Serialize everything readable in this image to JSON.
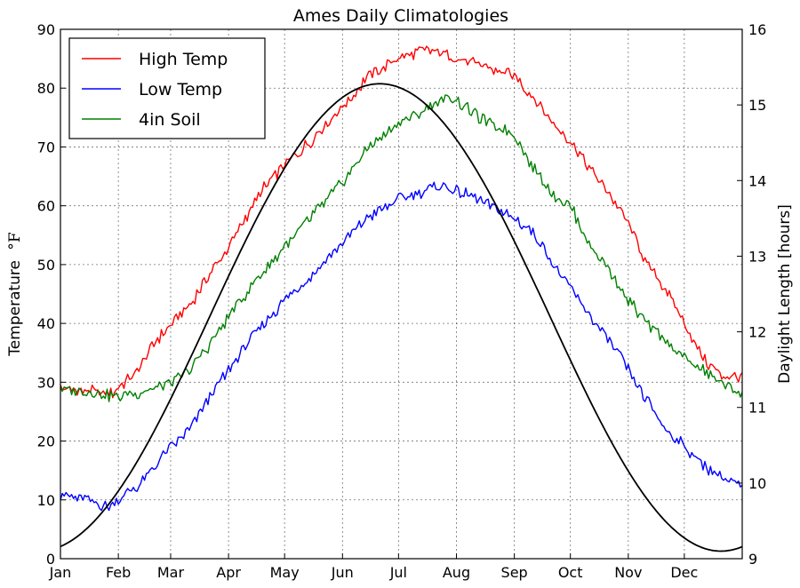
{
  "chart_data": {
    "type": "line",
    "title": "Ames Daily Climatologies",
    "ylabel": "Temperature °F",
    "ylabel_base": "Temperature",
    "ylabel_unit": "°F",
    "y2label": "Daylight Length [hours]",
    "ylim": [
      0,
      90
    ],
    "y2lim": [
      9,
      16
    ],
    "xlim_day": [
      1,
      366
    ],
    "grid": true,
    "legend_position": "top-left",
    "yticks": [
      0,
      10,
      20,
      30,
      40,
      50,
      60,
      70,
      80,
      90
    ],
    "y2ticks": [
      9,
      10,
      11,
      12,
      13,
      14,
      15,
      16
    ],
    "months": [
      {
        "label": "Jan",
        "day": 1
      },
      {
        "label": "Feb",
        "day": 32
      },
      {
        "label": "Mar",
        "day": 60
      },
      {
        "label": "Apr",
        "day": 91
      },
      {
        "label": "May",
        "day": 121
      },
      {
        "label": "Jun",
        "day": 152
      },
      {
        "label": "Jul",
        "day": 182
      },
      {
        "label": "Aug",
        "day": 213
      },
      {
        "label": "Sep",
        "day": 244
      },
      {
        "label": "Oct",
        "day": 274
      },
      {
        "label": "Nov",
        "day": 305
      },
      {
        "label": "Dec",
        "day": 335
      }
    ],
    "series": [
      {
        "name": "High Temp",
        "color": "#ff0000",
        "axis": "left",
        "x": [
          1,
          15,
          28,
          40,
          50,
          60,
          70,
          80,
          91,
          100,
          110,
          121,
          135,
          152,
          166,
          182,
          195,
          205,
          213,
          225,
          244,
          255,
          265,
          274,
          285,
          295,
          305,
          315,
          325,
          335,
          345,
          355,
          366
        ],
        "values": [
          29,
          28.5,
          28,
          31,
          36,
          40,
          43,
          48,
          53,
          58,
          63,
          67,
          71,
          77,
          82,
          85,
          86.5,
          86,
          85,
          84,
          82,
          78,
          74,
          71,
          66,
          62,
          57,
          50,
          46,
          40,
          34,
          31,
          31
        ]
      },
      {
        "name": "Low Temp",
        "color": "#0000ff",
        "axis": "left",
        "x": [
          1,
          15,
          26,
          32,
          45,
          60,
          70,
          80,
          91,
          100,
          110,
          121,
          135,
          152,
          166,
          182,
          195,
          205,
          213,
          225,
          244,
          255,
          265,
          274,
          285,
          295,
          305,
          315,
          325,
          335,
          345,
          355,
          366
        ],
        "values": [
          11,
          10,
          9,
          10,
          13,
          19,
          22,
          27,
          32,
          36,
          40,
          44,
          48,
          54,
          58,
          61,
          62.5,
          63.5,
          62.5,
          61,
          58,
          55,
          50,
          46,
          41,
          37,
          32,
          27,
          22,
          19,
          16,
          14,
          12
        ]
      },
      {
        "name": "4in Soil",
        "color": "#008000",
        "axis": "left",
        "x": [
          1,
          15,
          30,
          45,
          60,
          70,
          80,
          91,
          100,
          110,
          121,
          135,
          152,
          166,
          182,
          195,
          205,
          213,
          225,
          244,
          255,
          265,
          274,
          285,
          295,
          305,
          315,
          325,
          335,
          345,
          355,
          366
        ],
        "values": [
          29,
          28.5,
          27.5,
          28.5,
          30,
          32,
          36,
          41,
          45,
          49,
          53,
          58,
          64,
          70,
          74,
          76,
          78,
          78,
          75,
          72,
          66,
          62,
          60,
          53,
          49,
          44,
          40,
          37,
          34,
          32,
          30,
          28
        ]
      },
      {
        "name": "",
        "color": "#000000",
        "axis": "right",
        "x": [
          1,
          355,
          366
        ],
        "values": [
          9.18,
          9.1,
          9.16
        ],
        "curve": "daylight",
        "daylight_min": 9.1,
        "daylight_max": 15.28,
        "daylight_peak_day": 172
      }
    ]
  }
}
